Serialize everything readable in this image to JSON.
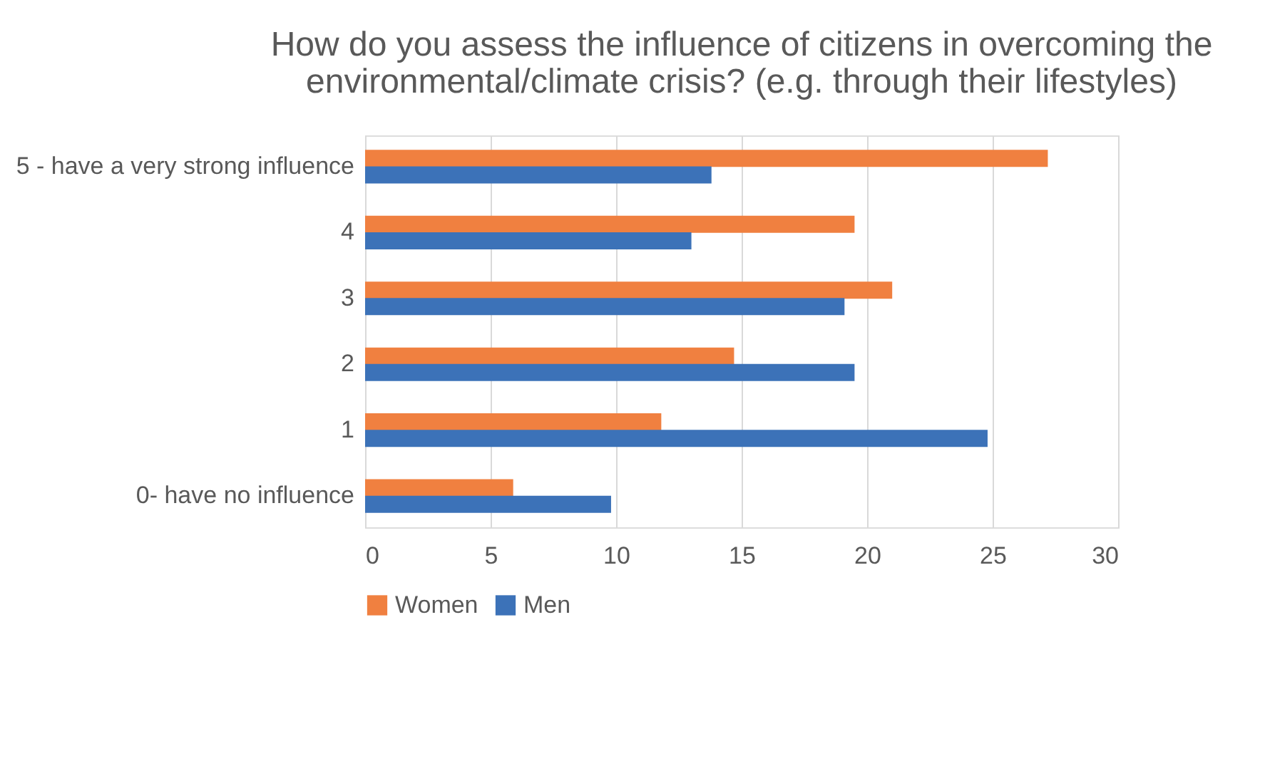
{
  "chart_data": {
    "type": "bar",
    "orientation": "horizontal",
    "title": "How do you assess the influence of citizens in overcoming the environmental/climate crisis? (e.g. through their lifestyles)",
    "categories": [
      "5 - have a very strong influence",
      "4",
      "3",
      "2",
      "1",
      "0- have no influence"
    ],
    "series": [
      {
        "name": "Women",
        "color": "#f08040",
        "values": [
          27.2,
          19.5,
          21.0,
          14.7,
          11.8,
          5.9
        ]
      },
      {
        "name": "Men",
        "color": "#3c72b8",
        "values": [
          13.8,
          13.0,
          19.1,
          19.5,
          24.8,
          9.8
        ]
      }
    ],
    "xlim": [
      0,
      30
    ],
    "xticks": [
      0,
      5,
      10,
      15,
      20,
      25,
      30
    ],
    "grid": "x",
    "legend": "bottom"
  }
}
